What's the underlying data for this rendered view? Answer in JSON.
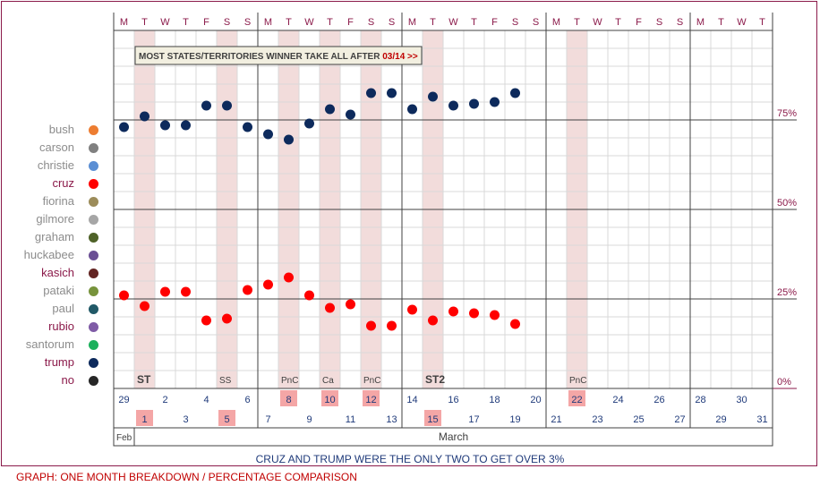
{
  "chart_data": {
    "type": "scatter",
    "day_letters": [
      "M",
      "T",
      "W",
      "T",
      "F",
      "S",
      "S",
      "M",
      "T",
      "W",
      "T",
      "F",
      "S",
      "S",
      "M",
      "T",
      "W",
      "T",
      "F",
      "S",
      "S",
      "M",
      "T",
      "W",
      "T",
      "F",
      "S",
      "S",
      "M",
      "T",
      "W",
      "T"
    ],
    "dates": [
      "29",
      "1",
      "2",
      "3",
      "4",
      "5",
      "6",
      "7",
      "8",
      "9",
      "10",
      "11",
      "12",
      "13",
      "14",
      "15",
      "16",
      "17",
      "18",
      "19",
      "20",
      "21",
      "22",
      "23",
      "24",
      "25",
      "26",
      "27",
      "28",
      "29",
      "30",
      "31"
    ],
    "highlighted_dates": [
      "1",
      "5",
      "8",
      "10",
      "12",
      "15",
      "22"
    ],
    "shaded_columns": [
      1,
      5,
      8,
      10,
      12,
      15,
      22
    ],
    "month_labels": [
      "Feb",
      "March"
    ],
    "event_labels": [
      {
        "day": 1,
        "label": "ST",
        "bold": true
      },
      {
        "day": 5,
        "label": "SS",
        "bold": false
      },
      {
        "day": 8,
        "label": "PnC",
        "bold": false
      },
      {
        "day": 10,
        "label": "Ca",
        "bold": false
      },
      {
        "day": 12,
        "label": "PnC",
        "bold": false
      },
      {
        "day": 15,
        "label": "ST2",
        "bold": true
      },
      {
        "day": 22,
        "label": "PnC",
        "bold": false
      }
    ],
    "banner": {
      "text": "MOST STATES/TERRITORIES WINNER TAKE ALL AFTER ",
      "date": "03/14 >>"
    },
    "y_ticks": [
      "0%",
      "25%",
      "50%",
      "75%"
    ],
    "ylim": [
      0,
      100
    ],
    "series": [
      {
        "name": "trump",
        "color": "#0d2a5c",
        "values": [
          73,
          76,
          73.5,
          73.5,
          79,
          79,
          73,
          71,
          69.5,
          74,
          78,
          76.5,
          82.5,
          82.5,
          78,
          81.5,
          79,
          79.5,
          80,
          82.5
        ]
      },
      {
        "name": "cruz",
        "color": "#ff0000",
        "values": [
          26,
          23,
          27,
          27,
          19,
          19.5,
          27.5,
          29,
          31,
          26,
          22.5,
          23.5,
          17.5,
          17.5,
          22,
          19,
          21.5,
          21,
          20.5,
          18
        ]
      }
    ],
    "legend": [
      {
        "name": "bush",
        "color": "#ed7d31",
        "emphasis": false
      },
      {
        "name": "carson",
        "color": "#808080",
        "emphasis": false
      },
      {
        "name": "christie",
        "color": "#5b8fd4",
        "emphasis": false
      },
      {
        "name": "cruz",
        "color": "#ff0000",
        "emphasis": true
      },
      {
        "name": "fiorina",
        "color": "#9c8c5a",
        "emphasis": false
      },
      {
        "name": "gilmore",
        "color": "#a6a6a6",
        "emphasis": false
      },
      {
        "name": "graham",
        "color": "#4f6228",
        "emphasis": false
      },
      {
        "name": "huckabee",
        "color": "#6a4f94",
        "emphasis": false
      },
      {
        "name": "kasich",
        "color": "#632523",
        "emphasis": true
      },
      {
        "name": "pataki",
        "color": "#77933c",
        "emphasis": false
      },
      {
        "name": "paul",
        "color": "#215967",
        "emphasis": false
      },
      {
        "name": "rubio",
        "color": "#7f5ba6",
        "emphasis": true
      },
      {
        "name": "santorum",
        "color": "#1cb05c",
        "emphasis": false
      },
      {
        "name": "trump",
        "color": "#0d2a5c",
        "emphasis": true
      },
      {
        "name": "no",
        "color": "#262626",
        "emphasis": true
      }
    ]
  },
  "caption": "CRUZ AND TRUMP WERE THE ONLY TWO TO GET OVER 3%",
  "footer": "GRAPH: ONE MONTH BREAKDOWN / PERCENTAGE COMPARISON",
  "colors": {
    "frame": "#8b1a4a",
    "shade": "#f2dcdb",
    "highlight_box": "#f4a6a6",
    "label_red": "#c00000",
    "dim_label": "#8c8c8c",
    "emph_label": "#8b1a4a"
  }
}
